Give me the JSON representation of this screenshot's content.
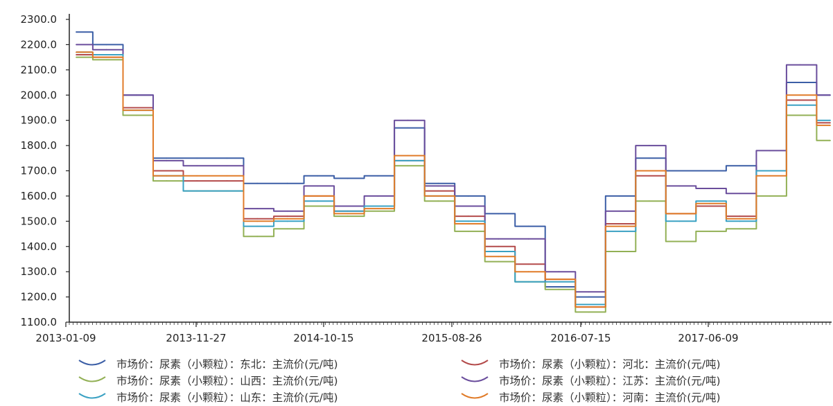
{
  "chart_data": {
    "type": "line",
    "ylim": [
      1100,
      2300
    ],
    "y_ticks": [
      "2300.0",
      "2200.0",
      "2100.0",
      "2000.0",
      "1900.0",
      "1800.0",
      "1700.0",
      "1600.0",
      "1500.0",
      "1400.0",
      "1300.0",
      "1200.0",
      "1100.0"
    ],
    "x_tick_labels": [
      "2013-01-09",
      "2013-11-27",
      "2014-10-15",
      "2015-08-26",
      "2016-07-15",
      "2017-06-09"
    ],
    "x_dates": [
      "2013-01-09",
      "2013-04",
      "2013-05",
      "2013-07",
      "2013-11-27",
      "2014-03",
      "2014-04",
      "2014-06",
      "2014-10-15",
      "2015-01",
      "2015-04",
      "2015-06",
      "2015-08-26",
      "2015-11",
      "2016-02",
      "2016-04",
      "2016-07-15",
      "2016-09",
      "2016-11",
      "2017-01",
      "2017-03",
      "2017-06-09",
      "2017-08",
      "2017-09",
      "2017-11",
      "2018-01"
    ],
    "series": [
      {
        "name": "市场价：尿素（小颗粒）：东北：主流价(元/吨)",
        "color": "#3b5ea6",
        "values": [
          2250,
          2200,
          2000,
          1750,
          1750,
          1750,
          1650,
          1650,
          1680,
          1670,
          1680,
          1870,
          1650,
          1600,
          1530,
          1480,
          1240,
          1200,
          1600,
          1750,
          1700,
          1700,
          1720,
          1700,
          2050,
          2000
        ]
      },
      {
        "name": "市场价：尿素（小颗粒）：河北：主流价(元/吨)",
        "color": "#b34a4a",
        "values": [
          2160,
          2150,
          1950,
          1700,
          1660,
          1660,
          1510,
          1520,
          1600,
          1540,
          1560,
          1740,
          1620,
          1520,
          1400,
          1330,
          1270,
          1160,
          1490,
          1680,
          1530,
          1560,
          1520,
          1700,
          1980,
          1890
        ]
      },
      {
        "name": "市场价：尿素（小颗粒）：山西：主流价(元/吨)",
        "color": "#92b055",
        "values": [
          2150,
          2140,
          1920,
          1660,
          1620,
          1620,
          1440,
          1470,
          1560,
          1520,
          1540,
          1720,
          1580,
          1460,
          1340,
          1260,
          1230,
          1140,
          1380,
          1580,
          1420,
          1460,
          1470,
          1600,
          1920,
          1820
        ]
      },
      {
        "name": "市场价：尿素（小颗粒）：江苏：主流价(元/吨)",
        "color": "#6a4d9c",
        "values": [
          2200,
          2180,
          2000,
          1740,
          1720,
          1720,
          1550,
          1540,
          1640,
          1560,
          1600,
          1900,
          1640,
          1560,
          1430,
          1430,
          1300,
          1220,
          1540,
          1800,
          1640,
          1630,
          1610,
          1780,
          2120,
          2000
        ]
      },
      {
        "name": "市场价：尿素（小颗粒）：山东：主流价(元/吨)",
        "color": "#3aa1c3",
        "values": [
          2170,
          2160,
          1940,
          1680,
          1620,
          1620,
          1480,
          1500,
          1580,
          1540,
          1560,
          1740,
          1600,
          1500,
          1380,
          1260,
          1260,
          1170,
          1460,
          1700,
          1500,
          1580,
          1500,
          1700,
          1960,
          1900
        ]
      },
      {
        "name": "市场价：尿素（小颗粒）：河南：主流价(元/吨)",
        "color": "#e07b28",
        "values": [
          2170,
          2150,
          1940,
          1680,
          1680,
          1680,
          1500,
          1510,
          1600,
          1530,
          1550,
          1760,
          1600,
          1490,
          1360,
          1300,
          1270,
          1160,
          1480,
          1700,
          1530,
          1570,
          1510,
          1680,
          2000,
          1880
        ]
      }
    ],
    "grid": false,
    "legend_position": "bottom"
  }
}
